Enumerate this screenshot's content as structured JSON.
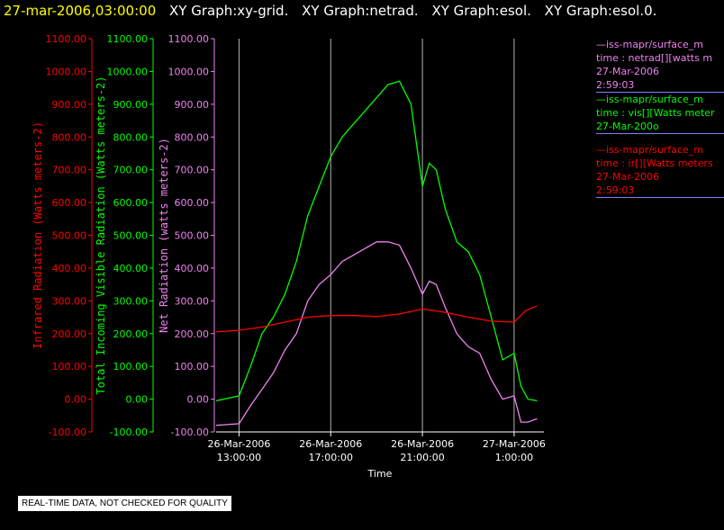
{
  "header": {
    "timestamp": "27-mar-2006,03:00:00",
    "graphs": [
      "XY Graph:xy-grid.",
      "XY Graph:netrad.",
      "XY Graph:esol.",
      "XY Graph:esol.0."
    ]
  },
  "legend": [
    {
      "lines": [
        "—iss-mapr/surface_m",
        "time : netrad[][watts m",
        "27-Mar-2006",
        "2:59:03"
      ],
      "color": "#ee82ee",
      "first_color": "#ee82ee"
    },
    {
      "lines": [
        "—iss-mapr/surface_m",
        "time : vis[][Watts meter",
        "27-Mar-200o"
      ],
      "color": "#00ff00",
      "first_color": "#00ff00"
    },
    {
      "lines": [
        "—iss-mapr/surface_m",
        "time : ir[][Watts meters",
        "27-Mar-2006",
        "2:59:03"
      ],
      "color": "#ff0000",
      "first_color": "#ff0000"
    }
  ],
  "footer_note": "REAL-TIME DATA, NOT CHECKED FOR QUALITY",
  "chart_data": {
    "type": "line",
    "xlabel": "Time",
    "x_ticks": [
      {
        "date": "26-Mar-2006",
        "time": "13:00:00",
        "hour": 13
      },
      {
        "date": "26-Mar-2006",
        "time": "17:00:00",
        "hour": 17
      },
      {
        "date": "26-Mar-2006",
        "time": "21:00:00",
        "hour": 21
      },
      {
        "date": "27-Mar-2006",
        "time": "1:00:00",
        "hour": 25
      }
    ],
    "xlim": [
      12.0,
      26.3
    ],
    "ylim": [
      -100,
      1100
    ],
    "y_ticks": [
      -100,
      0,
      100,
      200,
      300,
      400,
      500,
      600,
      700,
      800,
      900,
      1000,
      1100
    ],
    "y_tick_labels": [
      "-100.00",
      "0.00",
      "100.00",
      "200.00",
      "300.00",
      "400.00",
      "500.00",
      "600.00",
      "700.00",
      "800.00",
      "900.00",
      "1000.00",
      "1100.00"
    ],
    "axes": [
      {
        "label": "Infrared Radiation (Watts meters-2)",
        "color": "#ff0000"
      },
      {
        "label": "Total Incoming Visible Radiation (Watts meters-2)",
        "color": "#00ff00"
      },
      {
        "label": "Net Radiation (watts meters-2)",
        "color": "#ee82ee"
      }
    ],
    "grid": "vertical at x ticks",
    "series": [
      {
        "axis": 1,
        "color": "#00ff00",
        "x": [
          12.0,
          13.0,
          13.5,
          14.0,
          14.5,
          15.0,
          15.5,
          16.0,
          16.5,
          17.0,
          17.5,
          18.0,
          18.5,
          19.0,
          19.5,
          20.0,
          20.5,
          21.0,
          21.3,
          21.6,
          22.0,
          22.5,
          23.0,
          23.5,
          24.0,
          24.5,
          25.0,
          25.3,
          25.6,
          26.0
        ],
        "y": [
          -5,
          10,
          100,
          200,
          250,
          320,
          420,
          560,
          650,
          740,
          800,
          840,
          880,
          920,
          960,
          970,
          900,
          650,
          720,
          700,
          580,
          480,
          450,
          380,
          250,
          120,
          140,
          40,
          0,
          -5
        ]
      },
      {
        "axis": 2,
        "color": "#ee82ee",
        "x": [
          12.0,
          13.0,
          13.5,
          14.0,
          14.5,
          15.0,
          15.5,
          16.0,
          16.5,
          17.0,
          17.5,
          18.0,
          18.5,
          19.0,
          19.5,
          20.0,
          20.5,
          21.0,
          21.3,
          21.6,
          22.0,
          22.5,
          23.0,
          23.5,
          24.0,
          24.5,
          25.0,
          25.3,
          25.6,
          26.0
        ],
        "y": [
          -80,
          -75,
          -20,
          30,
          80,
          150,
          200,
          300,
          350,
          380,
          420,
          440,
          460,
          480,
          480,
          470,
          400,
          320,
          360,
          350,
          280,
          200,
          160,
          140,
          60,
          0,
          10,
          -70,
          -70,
          -60
        ]
      },
      {
        "axis": 0,
        "color": "#ff0000",
        "x": [
          12.0,
          13.0,
          14.0,
          15.0,
          16.0,
          17.0,
          18.0,
          19.0,
          20.0,
          21.0,
          22.0,
          23.0,
          24.0,
          25.0,
          25.5,
          26.0
        ],
        "y": [
          205,
          210,
          220,
          235,
          250,
          255,
          255,
          252,
          260,
          275,
          265,
          250,
          238,
          235,
          270,
          285
        ]
      }
    ]
  }
}
